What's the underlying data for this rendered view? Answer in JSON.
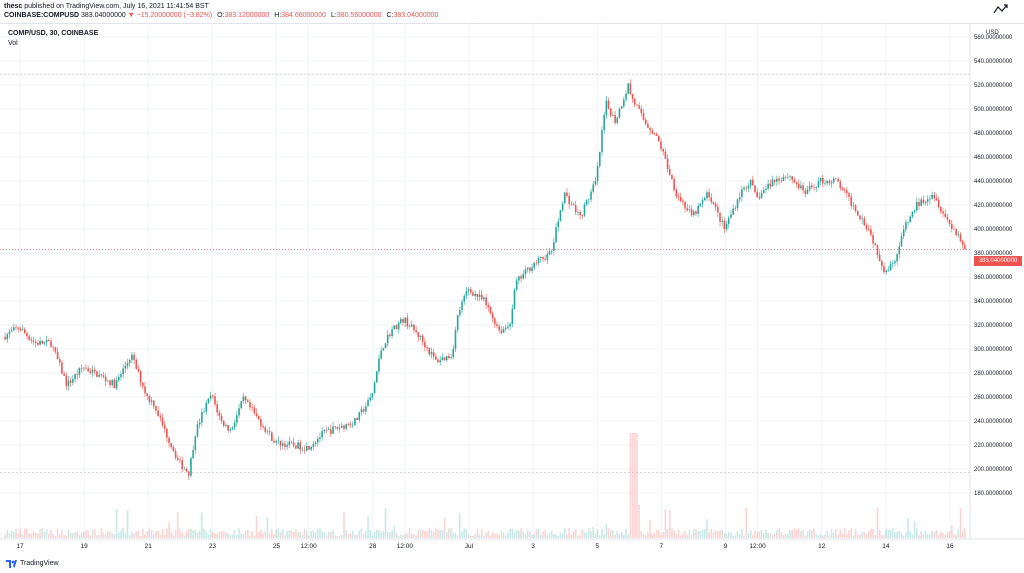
{
  "header": {
    "author": "thesc",
    "published_text": "published on TradingView.com, July 16, 2021 11:41:54 BST",
    "symbol_full": "COINBASE:COMPUSD",
    "last": "383.04000000",
    "change": "−15.20000000 (−3.82%)",
    "o_label": "O:",
    "o_value": "383.12000000",
    "h_label": "H:",
    "h_value": "384.66000000",
    "l_label": "L:",
    "l_value": "380.56000000",
    "c_label": "C:",
    "c_value": "383.04000000"
  },
  "legend": {
    "symbol": "COMP/USD, 30, COINBASE",
    "vol": "Vol"
  },
  "axis": {
    "currency": "USD",
    "last_price_tag": "383.04000000"
  },
  "footer": {
    "brand": "TradingView"
  },
  "colors": {
    "up": "#26a69a",
    "down": "#ef5350",
    "grid": "#f0f3fa"
  },
  "chart_data": {
    "type": "line",
    "title": "COMP/USD, 30, COINBASE",
    "ylabel": "USD",
    "ylim": [
      160,
      560
    ],
    "y_ticks": [
      "560.00000000",
      "540.00000000",
      "520.00000000",
      "500.00000000",
      "480.00000000",
      "460.00000000",
      "440.00000000",
      "420.00000000",
      "400.00000000",
      "380.00000000",
      "360.00000000",
      "340.00000000",
      "320.00000000",
      "300.00000000",
      "280.00000000",
      "260.00000000",
      "240.00000000",
      "220.00000000",
      "200.00000000",
      "180.00000000"
    ],
    "y_tick_values": [
      560,
      540,
      520,
      500,
      480,
      460,
      440,
      420,
      400,
      380,
      360,
      340,
      320,
      300,
      280,
      260,
      240,
      220,
      200,
      180
    ],
    "x_ticks": [
      "17",
      "19",
      "21",
      "23",
      "25",
      "12:00",
      "28",
      "12:00",
      "Jul",
      "3",
      "5",
      "7",
      "9",
      "12:00",
      "12",
      "14",
      "16"
    ],
    "x_tick_times": [
      0,
      2,
      4,
      6,
      8,
      9,
      11,
      12,
      14,
      16,
      18,
      20,
      22,
      23,
      25,
      27,
      29
    ],
    "time_range": [
      -0.5,
      29.5
    ],
    "reference_lines": [
      529,
      197
    ],
    "series": [
      {
        "values_x": [
          -0.5,
          0,
          0.5,
          1,
          1.5,
          2,
          2.5,
          3,
          3.5,
          4,
          4.2,
          4.5,
          5,
          5.3,
          5.5,
          5.7,
          6,
          6.3,
          6.6,
          7,
          7.5,
          8,
          8.5,
          9,
          9.5,
          10,
          10.5,
          11,
          11.3,
          11.6,
          12,
          12.5,
          13,
          13.5,
          13.7,
          14,
          14.5,
          15,
          15.3,
          15.5,
          16,
          16.3,
          16.6,
          17,
          17.5,
          18,
          18.3,
          18.6,
          19,
          19.1,
          19.3,
          19.5,
          19.8,
          20,
          20.5,
          21,
          21.5,
          22,
          22.5,
          22.8,
          23,
          23.5,
          24,
          24.5,
          25,
          25.5,
          26,
          26.5,
          27,
          27.2,
          27.4,
          27.6,
          28,
          28.5,
          29,
          29.3,
          29.5
        ],
        "values_y": [
          310,
          318,
          305,
          305,
          270,
          285,
          278,
          270,
          295,
          260,
          255,
          235,
          205,
          197,
          230,
          245,
          262,
          240,
          232,
          258,
          240,
          222,
          220,
          218,
          230,
          235,
          240,
          260,
          300,
          315,
          325,
          310,
          290,
          295,
          330,
          350,
          340,
          315,
          320,
          355,
          370,
          375,
          380,
          430,
          410,
          440,
          505,
          490,
          520,
          510,
          500,
          490,
          480,
          470,
          430,
          410,
          430,
          400,
          430,
          440,
          425,
          440,
          445,
          430,
          440,
          440,
          420,
          400,
          365,
          370,
          380,
          400,
          420,
          430,
          405,
          395,
          383
        ]
      }
    ],
    "volume_note": "volume histogram shown at bottom"
  }
}
